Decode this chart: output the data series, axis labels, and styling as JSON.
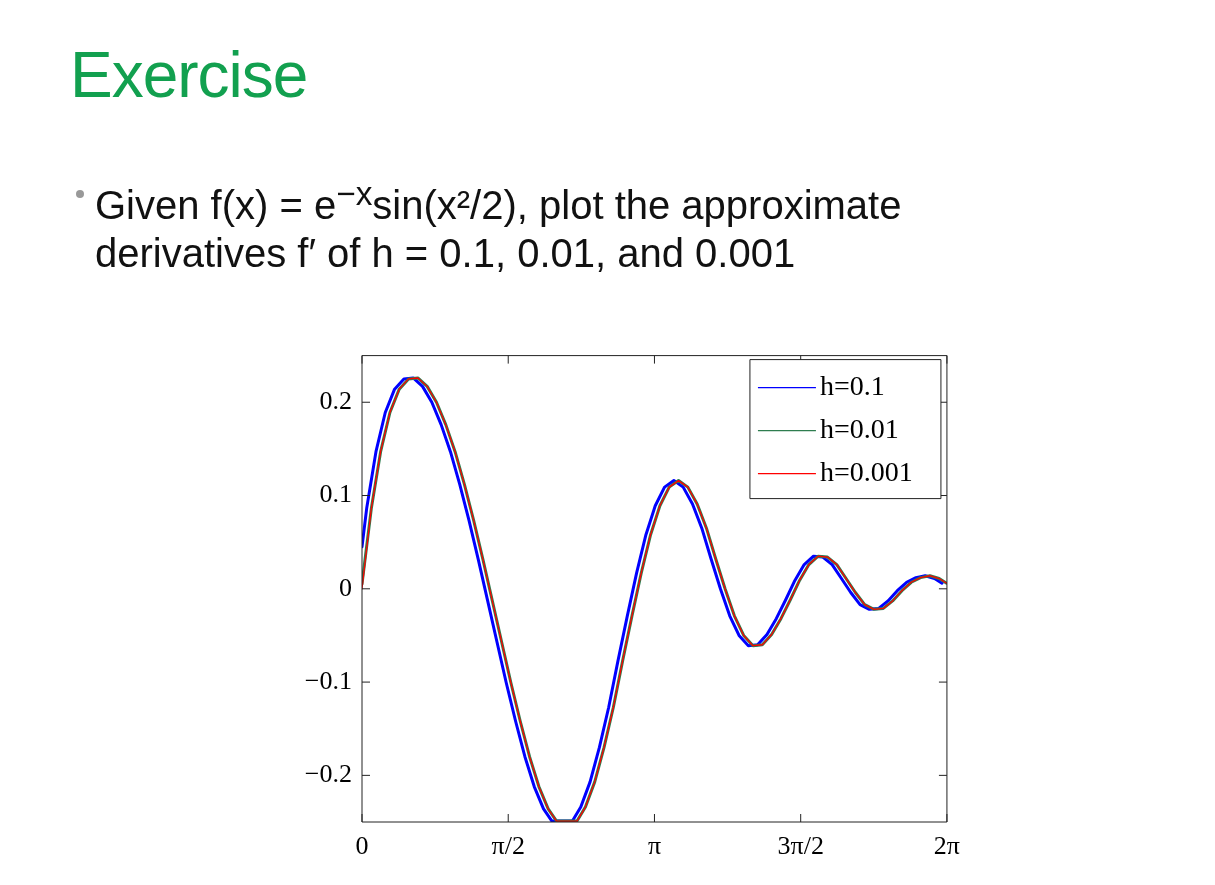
{
  "chart_data": {
    "type": "line",
    "title": "Exercise",
    "subtitle": "Given f(x) = e$^{−x}$sin(x²/2), plot the approximate derivatives f′ of h = 0.1, 0.01, and 0.001",
    "xlim": [
      0,
      6.2832
    ],
    "xticks": [
      0,
      {
        "value": 1.5708,
        "label": "π/2"
      },
      {
        "value": 3.1416,
        "label": "π"
      },
      {
        "value": 4.7124,
        "label": "3π/2"
      },
      {
        "value": 6.2832,
        "label": "2π"
      }
    ],
    "ylim": [
      -0.25,
      0.25
    ],
    "yticks": [
      {
        "value": -0.2,
        "label": "−0.2"
      },
      {
        "value": -0.1,
        "label": "−0.1"
      },
      0,
      0.1,
      0.2
    ],
    "grid": false,
    "legend": "top right",
    "marker": "none",
    "line_style": "solid",
    "series": [
      {
        "name": "h=0.1",
        "color": "#0000ff",
        "x": [
          0,
          0.05,
          0.15,
          0.25,
          0.35,
          0.45,
          0.55,
          0.65,
          0.75,
          0.85,
          0.95,
          1.05,
          1.15,
          1.25,
          1.35,
          1.45,
          1.55,
          1.65,
          1.75,
          1.85,
          1.95,
          2.04,
          2.26,
          2.35,
          2.45,
          2.55,
          2.65,
          2.75,
          2.85,
          2.95,
          3.05,
          3.15,
          3.25,
          3.35,
          3.45,
          3.55,
          3.65,
          3.75,
          3.85,
          3.95,
          4.05,
          4.15,
          4.25,
          4.35,
          4.45,
          4.55,
          4.65,
          4.75,
          4.85,
          4.95,
          5.05,
          5.15,
          5.25,
          5.35,
          5.45,
          5.55,
          5.65,
          5.75,
          5.85,
          5.95,
          6.05,
          6.15,
          6.23
        ],
        "values": [
          0.045,
          0.086,
          0.147,
          0.189,
          0.214,
          0.225,
          0.226,
          0.217,
          0.2,
          0.176,
          0.147,
          0.112,
          0.073,
          0.031,
          -0.013,
          -0.057,
          -0.101,
          -0.142,
          -0.18,
          -0.212,
          -0.236,
          -0.249,
          -0.249,
          -0.234,
          -0.207,
          -0.17,
          -0.127,
          -0.077,
          -0.029,
          0.017,
          0.058,
          0.089,
          0.109,
          0.116,
          0.109,
          0.091,
          0.065,
          0.032,
          0,
          -0.029,
          -0.05,
          -0.061,
          -0.06,
          -0.049,
          -0.032,
          -0.012,
          0.009,
          0.026,
          0.035,
          0.034,
          0.026,
          0.011,
          -0.004,
          -0.017,
          -0.022,
          -0.021,
          -0.013,
          -0.002,
          0.007,
          0.012,
          0.014,
          0.011,
          0.006
        ]
      },
      {
        "name": "h=0.01",
        "color": "#2e7d4f",
        "x": [
          0,
          0.1,
          0.2,
          0.3,
          0.4,
          0.5,
          0.6,
          0.7,
          0.8,
          0.9,
          1.0,
          1.1,
          1.2,
          1.3,
          1.4,
          1.5,
          1.6,
          1.7,
          1.8,
          1.9,
          2.0,
          2.09,
          2.31,
          2.4,
          2.5,
          2.6,
          2.7,
          2.8,
          2.9,
          3.0,
          3.1,
          3.2,
          3.3,
          3.4,
          3.5,
          3.6,
          3.7,
          3.8,
          3.9,
          4.0,
          4.1,
          4.2,
          4.3,
          4.4,
          4.5,
          4.6,
          4.7,
          4.8,
          4.9,
          5.0,
          5.1,
          5.2,
          5.3,
          5.4,
          5.5,
          5.6,
          5.7,
          5.8,
          5.9,
          6.0,
          6.1,
          6.2,
          6.28
        ],
        "values": [
          0.005,
          0.086,
          0.147,
          0.189,
          0.214,
          0.225,
          0.226,
          0.217,
          0.2,
          0.176,
          0.147,
          0.112,
          0.073,
          0.031,
          -0.013,
          -0.057,
          -0.101,
          -0.142,
          -0.18,
          -0.212,
          -0.236,
          -0.249,
          -0.249,
          -0.234,
          -0.207,
          -0.17,
          -0.127,
          -0.077,
          -0.029,
          0.017,
          0.058,
          0.089,
          0.109,
          0.116,
          0.109,
          0.091,
          0.065,
          0.032,
          0,
          -0.029,
          -0.05,
          -0.061,
          -0.06,
          -0.049,
          -0.032,
          -0.012,
          0.009,
          0.026,
          0.035,
          0.034,
          0.026,
          0.011,
          -0.004,
          -0.017,
          -0.022,
          -0.021,
          -0.013,
          -0.002,
          0.007,
          0.012,
          0.014,
          0.011,
          0.006
        ]
      },
      {
        "name": "h=0.001",
        "color": "#ff0000",
        "x": [
          0,
          0.1,
          0.2,
          0.3,
          0.4,
          0.5,
          0.6,
          0.7,
          0.8,
          0.9,
          1.0,
          1.1,
          1.2,
          1.3,
          1.4,
          1.5,
          1.6,
          1.7,
          1.8,
          1.9,
          2.0,
          2.09,
          2.31,
          2.4,
          2.5,
          2.6,
          2.7,
          2.8,
          2.9,
          3.0,
          3.1,
          3.2,
          3.3,
          3.4,
          3.5,
          3.6,
          3.7,
          3.8,
          3.9,
          4.0,
          4.1,
          4.2,
          4.3,
          4.4,
          4.5,
          4.6,
          4.7,
          4.8,
          4.9,
          5.0,
          5.1,
          5.2,
          5.3,
          5.4,
          5.5,
          5.6,
          5.7,
          5.8,
          5.9,
          6.0,
          6.1,
          6.2,
          6.28
        ],
        "values": [
          0,
          0.086,
          0.147,
          0.189,
          0.214,
          0.225,
          0.226,
          0.217,
          0.2,
          0.176,
          0.147,
          0.112,
          0.073,
          0.031,
          -0.013,
          -0.057,
          -0.101,
          -0.142,
          -0.18,
          -0.212,
          -0.236,
          -0.249,
          -0.249,
          -0.234,
          -0.207,
          -0.17,
          -0.127,
          -0.077,
          -0.029,
          0.017,
          0.058,
          0.089,
          0.109,
          0.116,
          0.109,
          0.091,
          0.065,
          0.032,
          0,
          -0.029,
          -0.05,
          -0.061,
          -0.06,
          -0.049,
          -0.032,
          -0.012,
          0.009,
          0.026,
          0.035,
          0.034,
          0.026,
          0.011,
          -0.004,
          -0.017,
          -0.022,
          -0.021,
          -0.013,
          -0.002,
          0.007,
          0.012,
          0.014,
          0.011,
          0.006
        ]
      }
    ]
  }
}
